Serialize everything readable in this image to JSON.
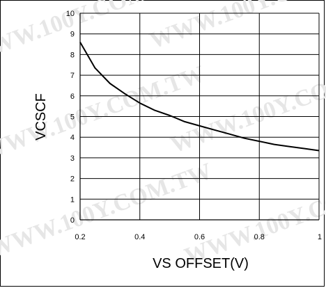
{
  "watermark": "WWW.100Y.COM.TW",
  "chart_data": {
    "type": "line",
    "title": "",
    "xlabel": "VS OFFSET(V)",
    "ylabel": "VCSCF",
    "xlim": [
      0.2,
      1.0
    ],
    "ylim": [
      0,
      10
    ],
    "x_ticks": [
      0.2,
      0.4,
      0.6,
      0.8,
      1.0
    ],
    "x_tick_labels": [
      "0.2",
      "0.4",
      "0.6",
      "0.8",
      "1"
    ],
    "y_ticks": [
      0,
      1,
      2,
      3,
      4,
      5,
      6,
      7,
      8,
      9,
      10
    ],
    "y_tick_labels": [
      "0",
      "1",
      "2",
      "3",
      "4",
      "5",
      "6",
      "7",
      "8",
      "9",
      "10"
    ],
    "grid": true,
    "legend": "none",
    "line_color": "#000000",
    "series": [
      {
        "x": [
          0.2,
          0.25,
          0.3,
          0.35,
          0.4,
          0.45,
          0.5,
          0.55,
          0.6,
          0.65,
          0.7,
          0.75,
          0.8,
          0.85,
          0.9,
          0.95,
          1.0
        ],
        "values": [
          8.6,
          7.35,
          6.6,
          6.1,
          5.65,
          5.3,
          5.05,
          4.75,
          4.55,
          4.35,
          4.15,
          3.95,
          3.8,
          3.65,
          3.55,
          3.45,
          3.35
        ]
      }
    ]
  }
}
